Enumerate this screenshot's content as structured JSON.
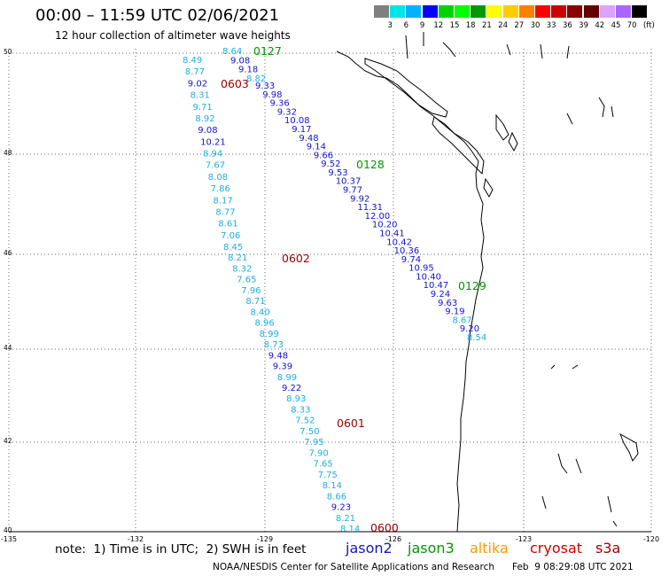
{
  "title": "00:00 – 11:59 UTC 02/06/2021",
  "subtitle": "12 hour collection of altimeter wave heights",
  "colorbar": {
    "labels": [
      "3",
      "6",
      "9",
      "12",
      "15",
      "18",
      "21",
      "24",
      "27",
      "30",
      "33",
      "36",
      "39",
      "42",
      "45",
      "70"
    ],
    "unit": "(ft)",
    "colors": [
      "#7f7f7f",
      "#00e5e5",
      "#00b2ff",
      "#0000ff",
      "#00d400",
      "#00ff00",
      "#009900",
      "#ffff00",
      "#ffcc00",
      "#ff8000",
      "#ff0000",
      "#cc0000",
      "#8b0000",
      "#660000",
      "#d9a3ff",
      "#aa66ff",
      "#000000"
    ]
  },
  "axes": {
    "lat_labels": [
      "50",
      "48",
      "46",
      "44",
      "42",
      "40"
    ],
    "lon_labels": [
      "-135",
      "-132",
      "-129",
      "-126",
      "-123",
      "-120"
    ]
  },
  "track_colors": {
    "light": "#1eaee0",
    "dark": "#1414c8",
    "green": "#009900",
    "red": "#990000"
  },
  "tracks": [
    {
      "id": "t1",
      "color": "light",
      "pass": {
        "label": "0603",
        "color": "red"
      },
      "values": [
        "8.49",
        "8.77",
        "9.02",
        "8.31",
        "9.71",
        "8.92",
        "9.08",
        "10.21",
        "8.94",
        "7.67",
        "8.08",
        "7.86",
        "8.17",
        "8.77",
        "8.61",
        "7.06",
        "8.45",
        "8.21",
        "8.32",
        "7.65",
        "7.96",
        "8.71",
        "8.40",
        "8.96",
        "8.99",
        "8.73",
        "9.48",
        "9.39",
        "8.99",
        "9.22",
        "8.93",
        "8.33",
        "7.52",
        "7.50",
        "7.95",
        "7.90",
        "7.65",
        "7.75",
        "8.14",
        "8.66",
        "9.23",
        "8.21",
        "8.14"
      ],
      "dark": [
        2,
        6,
        7,
        26,
        27,
        29,
        40
      ],
      "extra_labels": [
        {
          "label": "0602",
          "color": "red"
        },
        {
          "label": "0601",
          "color": "red"
        },
        {
          "label": "0600",
          "color": "red"
        }
      ]
    },
    {
      "id": "t2",
      "color": "dark",
      "pass": {
        "label": "0127",
        "color": "green"
      },
      "values": [
        "8.64",
        "9.08",
        "9.18",
        "8.82",
        "9.33",
        "9.98",
        "9.36",
        "9.32",
        "10.08",
        "9.17",
        "9.48",
        "9.14",
        "9.66",
        "9.52",
        "9.53",
        "10.37",
        "9.77",
        "9.92",
        "11.31",
        "12.00",
        "10.20",
        "10.41",
        "10.42",
        "10.36",
        "9.74",
        "10.95",
        "10.40",
        "10.47",
        "9.24",
        "9.63",
        "9.19",
        "8.67",
        "9.20",
        "8.54"
      ],
      "light": [
        0,
        3,
        31,
        33
      ],
      "extra_labels": [
        {
          "label": "0128",
          "color": "green"
        },
        {
          "label": "0129",
          "color": "green"
        }
      ]
    }
  ],
  "note": "note:  1) Time is in UTC;  2) SWH is in feet",
  "satellites": [
    {
      "name": "jason2",
      "color": "#1414c8"
    },
    {
      "name": "jason3",
      "color": "#009900"
    },
    {
      "name": "altika",
      "color": "#ff9900"
    },
    {
      "name": "cryosat",
      "color": "#cc0000"
    },
    {
      "name": "s3a",
      "color": "#990000"
    }
  ],
  "credit": "NOAA/NESDIS Center for Satellite Applications and Research",
  "timestamp": "Feb  9 08:29:08 UTC 2021"
}
